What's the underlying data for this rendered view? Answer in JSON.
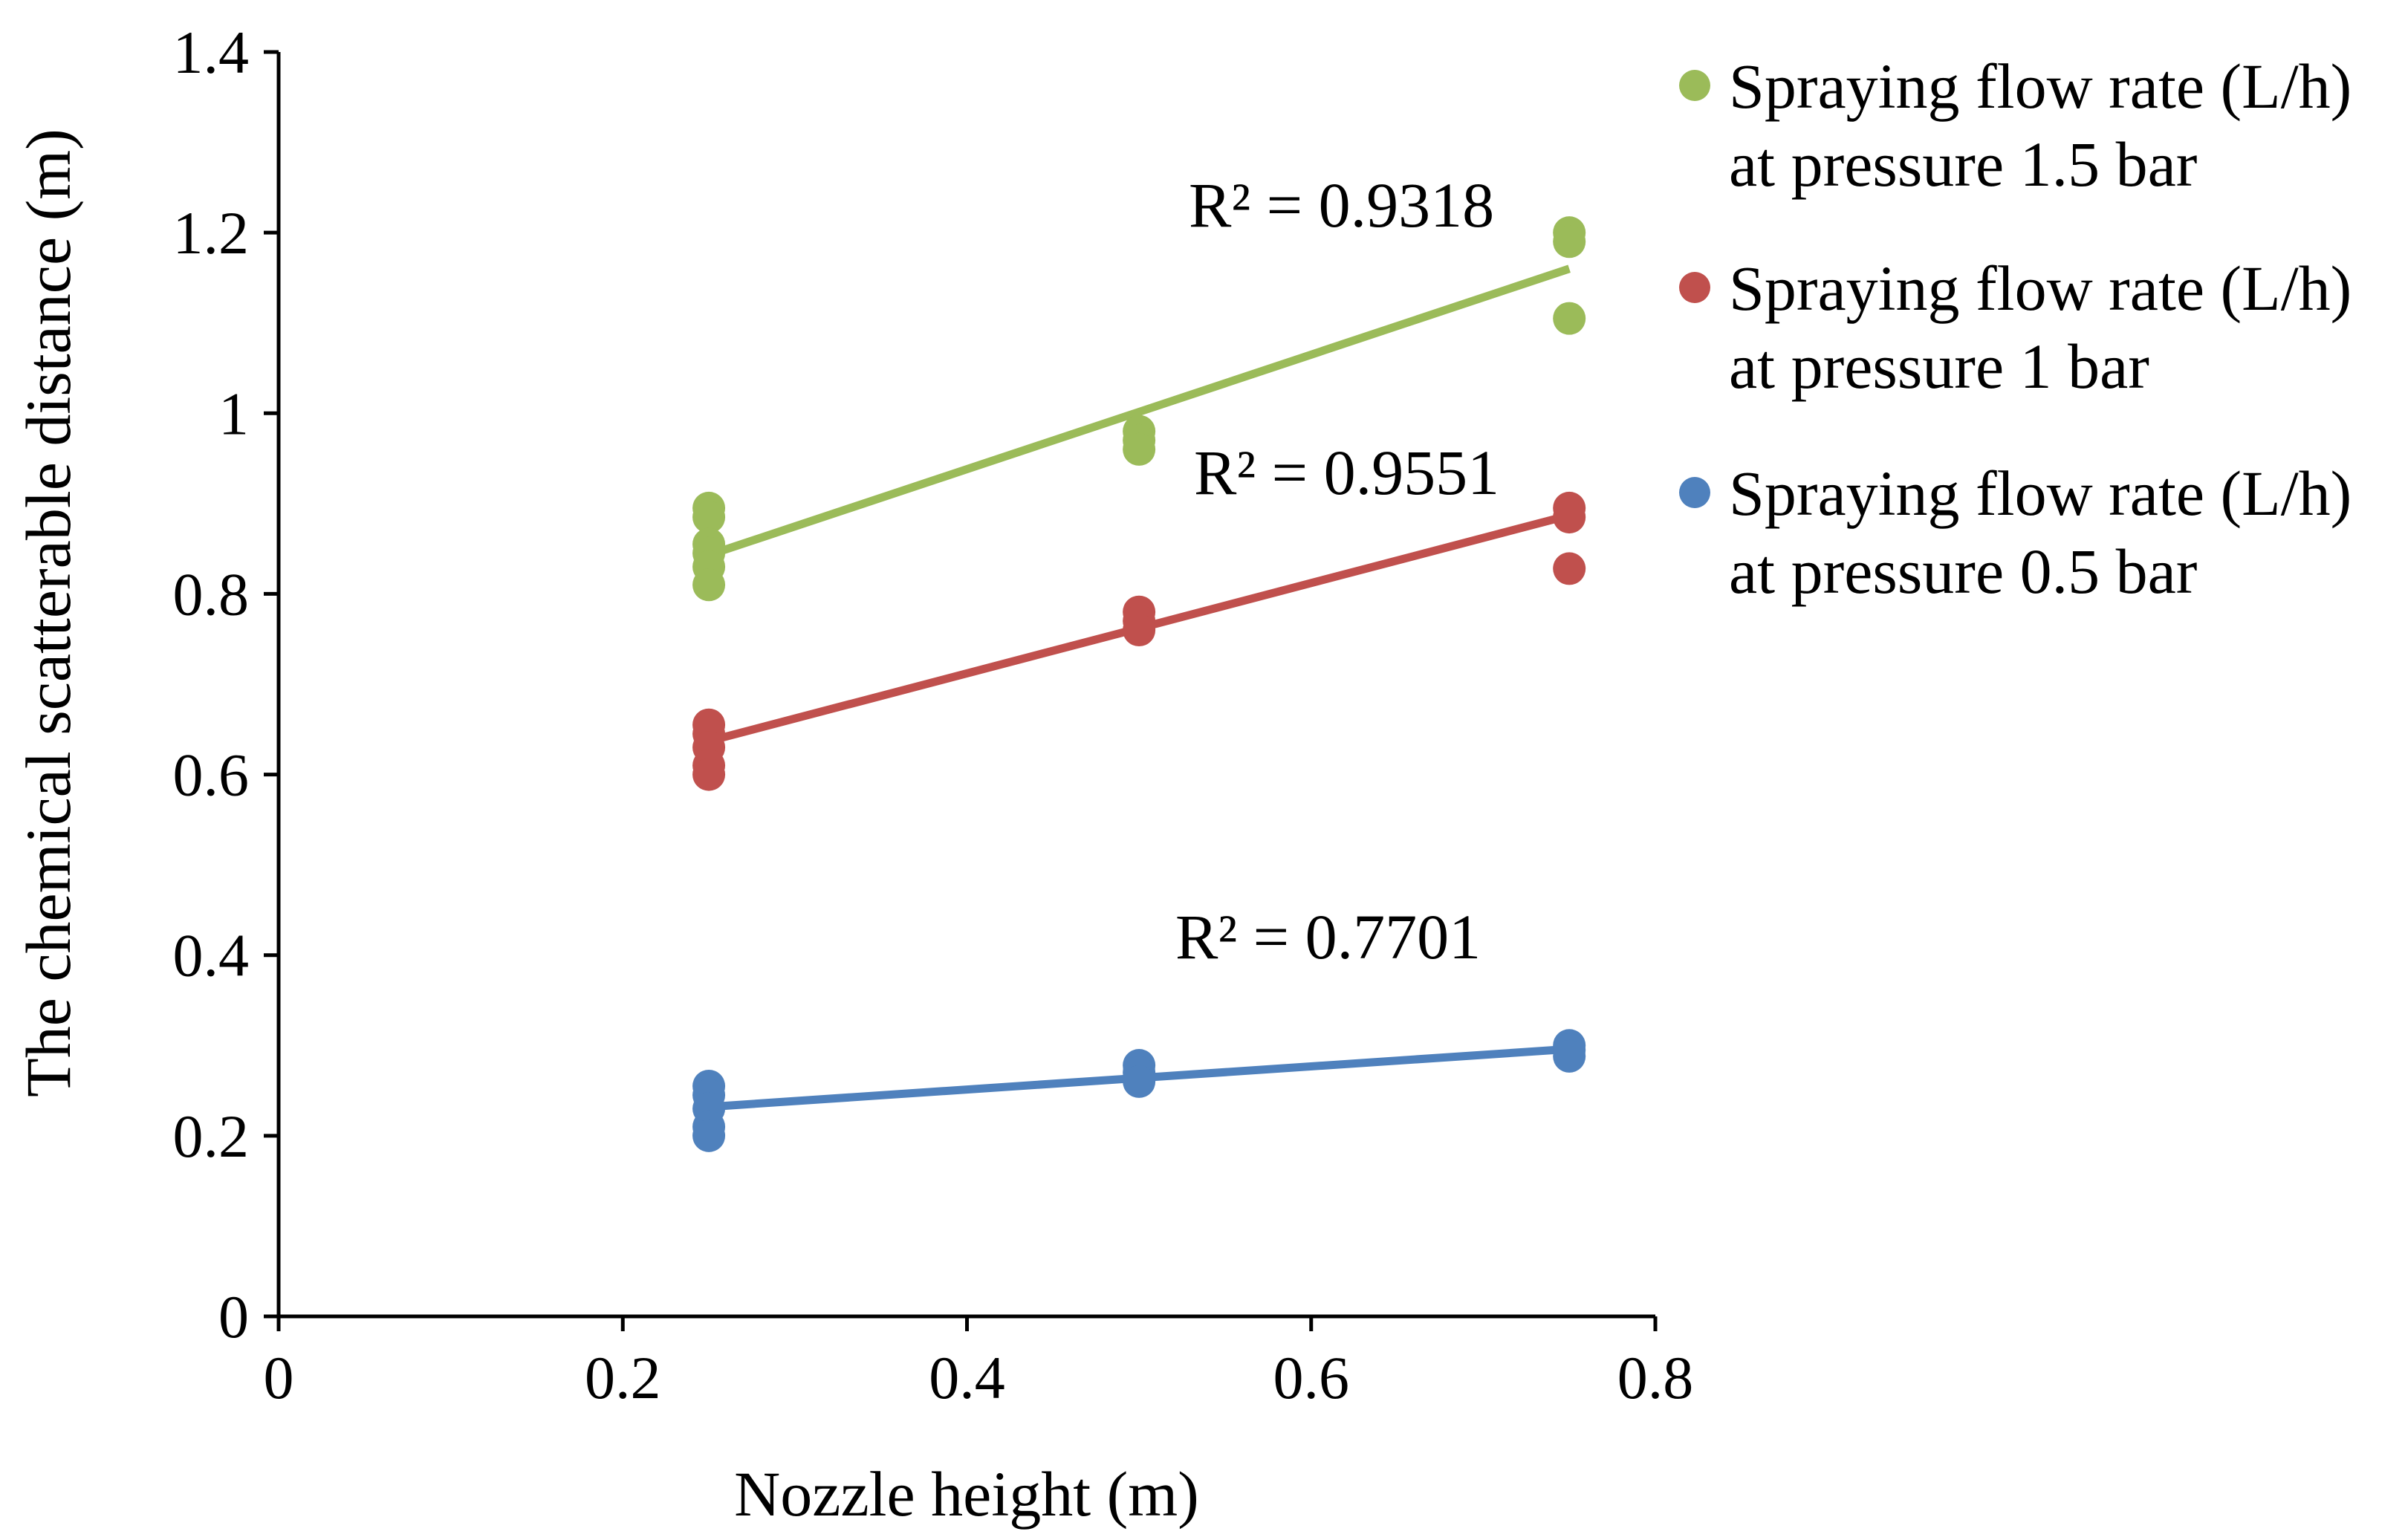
{
  "chart_data": {
    "type": "scatter",
    "title": "",
    "xlabel": "Nozzle height (m)",
    "ylabel": "The chemical scatterable distance (m)",
    "xlim": [
      0,
      0.8
    ],
    "ylim": [
      0,
      1.4
    ],
    "xticks": [
      "0",
      "0.2",
      "0.4",
      "0.6",
      "0.8"
    ],
    "yticks": [
      "0",
      "0.2",
      "0.4",
      "0.6",
      "0.8",
      "1",
      "1.2",
      "1.4"
    ],
    "grid": false,
    "legend_position": "right",
    "series": [
      {
        "name": "Spraying flow rate (L/h) at pressure 1.5 bar",
        "legend_lines": [
          "Spraying flow rate (L/h)",
          "at pressure 1.5 bar"
        ],
        "color": "#9BBB59",
        "points": [
          [
            0.25,
            0.895
          ],
          [
            0.25,
            0.885
          ],
          [
            0.25,
            0.855
          ],
          [
            0.25,
            0.845
          ],
          [
            0.25,
            0.83
          ],
          [
            0.25,
            0.81
          ],
          [
            0.5,
            0.98
          ],
          [
            0.5,
            0.97
          ],
          [
            0.5,
            0.96
          ],
          [
            0.75,
            1.2
          ],
          [
            0.75,
            1.19
          ],
          [
            0.75,
            1.105
          ]
        ],
        "trendline": {
          "x": [
            0.25,
            0.75
          ],
          "y": [
            0.843,
            1.16
          ]
        },
        "r2_label": "R² = 0.9318"
      },
      {
        "name": "Spraying flow rate (L/h) at pressure 1 bar",
        "legend_lines": [
          "Spraying flow rate (L/h)",
          "at pressure 1 bar"
        ],
        "color": "#C0504D",
        "points": [
          [
            0.25,
            0.655
          ],
          [
            0.25,
            0.645
          ],
          [
            0.25,
            0.63
          ],
          [
            0.25,
            0.61
          ],
          [
            0.25,
            0.6
          ],
          [
            0.5,
            0.78
          ],
          [
            0.5,
            0.77
          ],
          [
            0.5,
            0.76
          ],
          [
            0.75,
            0.895
          ],
          [
            0.75,
            0.885
          ],
          [
            0.75,
            0.828
          ]
        ],
        "trendline": {
          "x": [
            0.25,
            0.75
          ],
          "y": [
            0.637,
            0.887
          ]
        },
        "r2_label": "R² = 0.9551"
      },
      {
        "name": "Spraying flow rate (L/h) at pressure 0.5 bar",
        "legend_lines": [
          "Spraying flow rate (L/h)",
          "at pressure 0.5 bar"
        ],
        "color": "#4F81BD",
        "points": [
          [
            0.25,
            0.255
          ],
          [
            0.25,
            0.245
          ],
          [
            0.25,
            0.23
          ],
          [
            0.25,
            0.21
          ],
          [
            0.25,
            0.2
          ],
          [
            0.5,
            0.278
          ],
          [
            0.5,
            0.27
          ],
          [
            0.5,
            0.26
          ],
          [
            0.75,
            0.3
          ],
          [
            0.75,
            0.295
          ],
          [
            0.75,
            0.288
          ]
        ],
        "trendline": {
          "x": [
            0.25,
            0.75
          ],
          "y": [
            0.232,
            0.296
          ]
        },
        "r2_label": "R² = 0.7701"
      }
    ]
  }
}
